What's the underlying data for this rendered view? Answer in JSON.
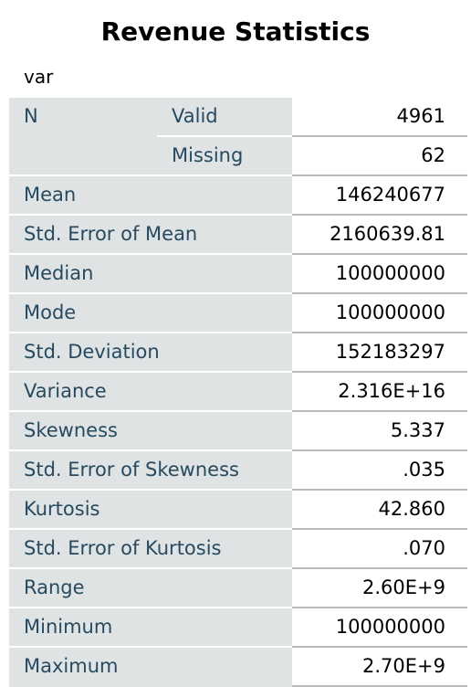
{
  "title": "Revenue Statistics",
  "variable": "var",
  "n_label": "N",
  "n_rows": [
    {
      "label": "Valid",
      "value": "4961"
    },
    {
      "label": "Missing",
      "value": "62"
    }
  ],
  "rows": [
    {
      "label": "Mean",
      "value": "146240677"
    },
    {
      "label": "Std. Error of Mean",
      "value": "2160639.81"
    },
    {
      "label": "Median",
      "value": "100000000"
    },
    {
      "label": "Mode",
      "value": "100000000"
    },
    {
      "label": "Std. Deviation",
      "value": "152183297"
    },
    {
      "label": "Variance",
      "value": "2.316E+16"
    },
    {
      "label": "Skewness",
      "value": "5.337"
    },
    {
      "label": "Std. Error of Skewness",
      "value": ".035"
    },
    {
      "label": "Kurtosis",
      "value": "42.860"
    },
    {
      "label": "Std. Error of Kurtosis",
      "value": ".070"
    },
    {
      "label": "Range",
      "value": "2.60E+9"
    },
    {
      "label": "Minimum",
      "value": "100000000"
    },
    {
      "label": "Maximum",
      "value": "2.70E+9"
    }
  ],
  "colors": {
    "label_bg": "#e0e3e4",
    "label_text": "#264a60",
    "grid_line": "#b9bcbe"
  }
}
